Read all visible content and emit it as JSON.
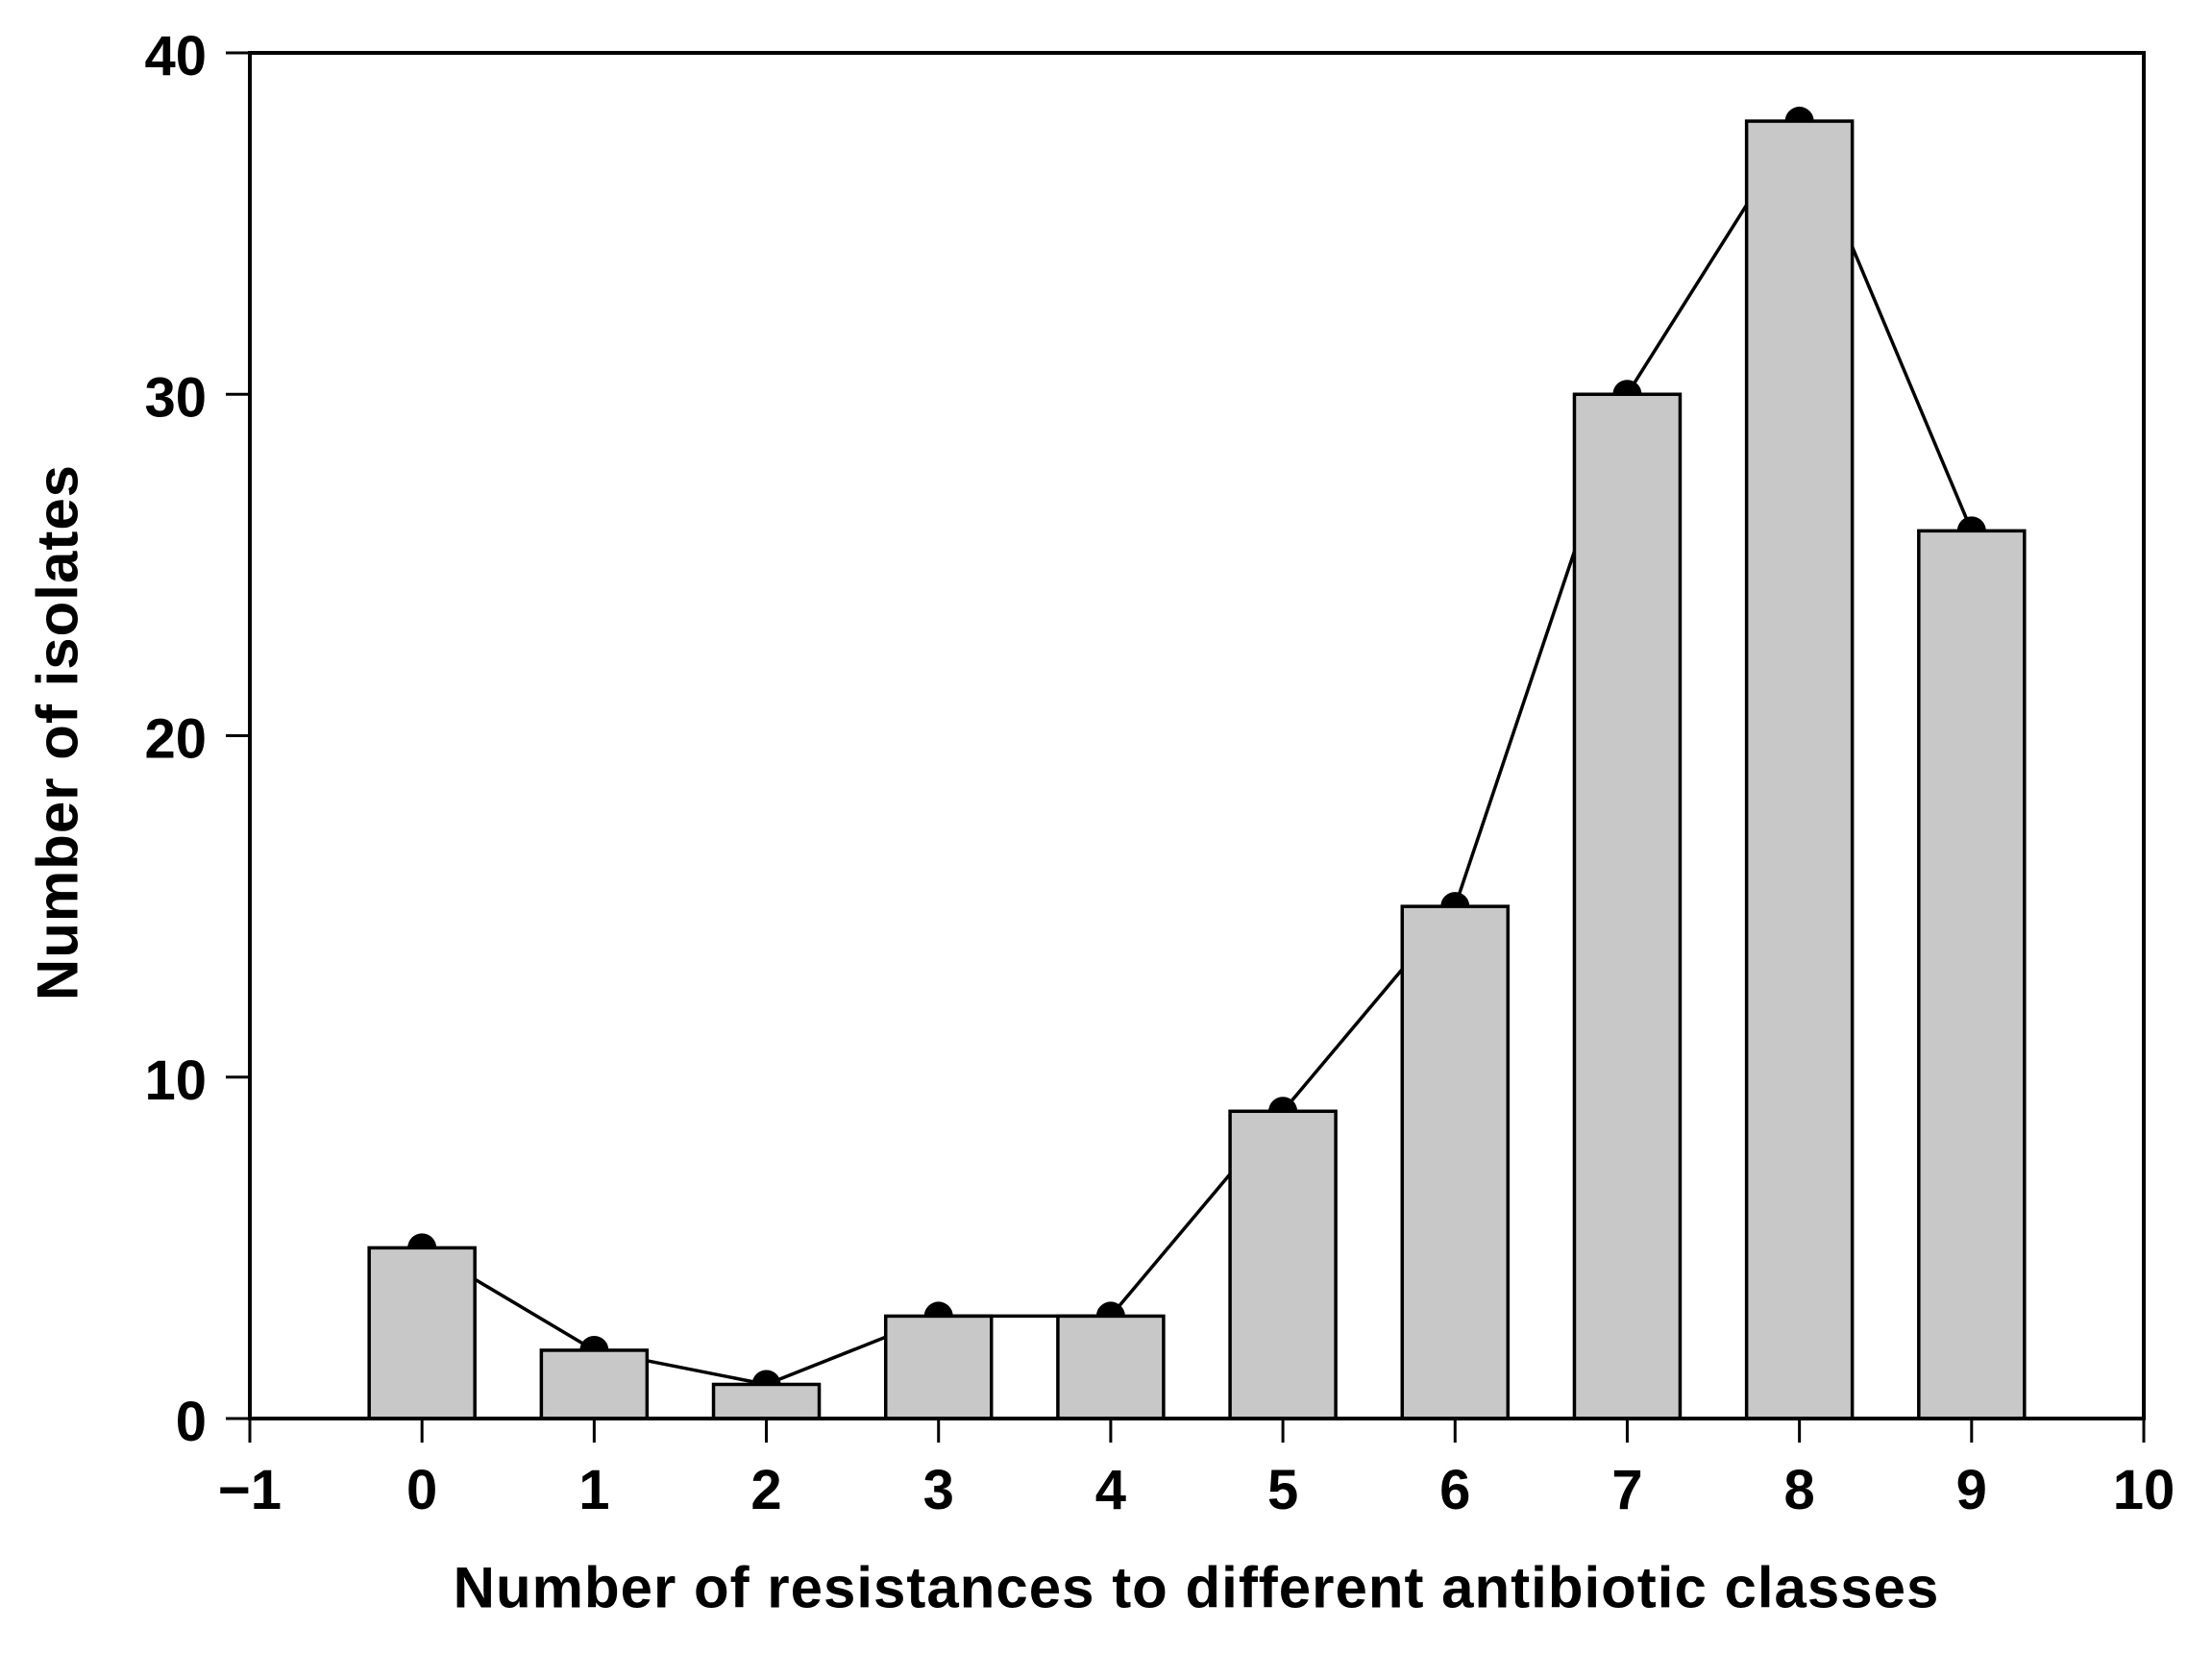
{
  "chart_data": {
    "type": "bar",
    "title": "",
    "xlabel": "Number of resistances to different antibiotic classes",
    "ylabel": "Number of isolates",
    "categories": [
      "0",
      "1",
      "2",
      "3",
      "4",
      "5",
      "6",
      "7",
      "8",
      "9"
    ],
    "x": [
      0,
      1,
      2,
      3,
      4,
      5,
      6,
      7,
      8,
      9
    ],
    "values": [
      5,
      2,
      1,
      3,
      3,
      9,
      15,
      30,
      38,
      26
    ],
    "series": [
      {
        "name": "isolates-bars",
        "type": "bar",
        "values": [
          5,
          2,
          1,
          3,
          3,
          9,
          15,
          30,
          38,
          26
        ]
      },
      {
        "name": "isolates-line",
        "type": "line",
        "marker": "filled-circle",
        "values": [
          5,
          2,
          1,
          3,
          3,
          9,
          15,
          30,
          38,
          26
        ]
      }
    ],
    "xlim": [
      -1,
      10
    ],
    "ylim": [
      0,
      40
    ],
    "x_ticks": [
      -1,
      0,
      1,
      2,
      3,
      4,
      5,
      6,
      7,
      8,
      9,
      10
    ],
    "x_tick_labels": [
      "−1",
      "0",
      "1",
      "2",
      "3",
      "4",
      "5",
      "6",
      "7",
      "8",
      "9",
      "10"
    ],
    "y_ticks": [
      0,
      10,
      20,
      30,
      40
    ],
    "y_tick_labels": [
      "0",
      "10",
      "20",
      "30",
      "40"
    ],
    "grid": false,
    "legend": null,
    "frame": true,
    "line_behind_bars": true,
    "colors": {
      "background": "#ffffff",
      "bar_fill": "#c8c8c8",
      "bar_edge": "#000000",
      "line": "#000000",
      "marker": "#000000",
      "axis": "#000000",
      "text": "#000000"
    }
  }
}
